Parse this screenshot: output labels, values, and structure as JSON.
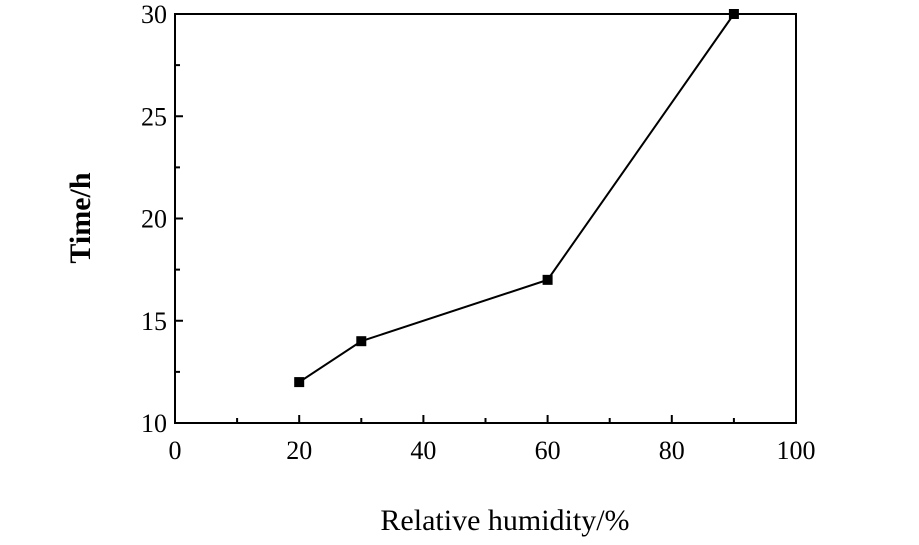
{
  "chart_data": {
    "type": "line",
    "title": "",
    "xlabel": "Relative humidity/%",
    "ylabel": "Time/h",
    "xlim": [
      0,
      100
    ],
    "ylim": [
      10,
      30
    ],
    "x_ticks": [
      0,
      20,
      40,
      60,
      80,
      100
    ],
    "y_ticks": [
      10,
      15,
      20,
      25,
      30
    ],
    "x_tick_labels": [
      "0",
      "20",
      "40",
      "60",
      "80",
      "100"
    ],
    "y_tick_labels": [
      "10",
      "15",
      "20",
      "25",
      "30"
    ],
    "grid": false,
    "legend": "none",
    "marker": "square",
    "line_color": "#000000",
    "series": [
      {
        "x": [
          20,
          30,
          60,
          90
        ],
        "y": [
          12,
          14,
          17,
          30
        ]
      }
    ]
  }
}
